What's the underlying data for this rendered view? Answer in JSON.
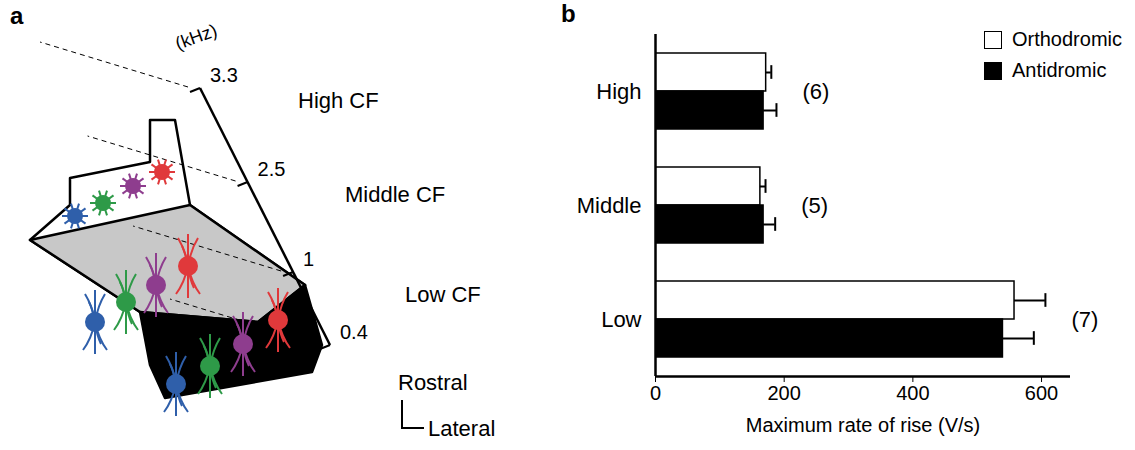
{
  "diagram": {
    "panel_label": "a",
    "unit": "(kHz)",
    "scale_ticks": [
      "3.3",
      "2.5",
      "1",
      "0.4"
    ],
    "regions": [
      "High CF",
      "Middle CF",
      "Low CF"
    ],
    "directions": [
      "Rostral",
      "Lateral"
    ]
  },
  "chart_data": {
    "type": "bar",
    "orientation": "horizontal",
    "panel_label": "b",
    "categories": [
      "High",
      "Middle",
      "Low"
    ],
    "series": [
      {
        "name": "Orthodromic",
        "color": "#ffffff",
        "values": [
          172,
          163,
          558
        ],
        "errors": [
          8,
          8,
          48
        ]
      },
      {
        "name": "Antidromic",
        "color": "#000000",
        "values": [
          168,
          168,
          540
        ],
        "errors": [
          20,
          18,
          48
        ]
      }
    ],
    "annotations": [
      "(6)",
      "(5)",
      "(7)"
    ],
    "xlabel": "Maximum rate of rise (V/s)",
    "xlim": [
      0,
      645
    ],
    "xticks": [
      0,
      200,
      400,
      600
    ],
    "legend": "top-right",
    "grid": false
  }
}
